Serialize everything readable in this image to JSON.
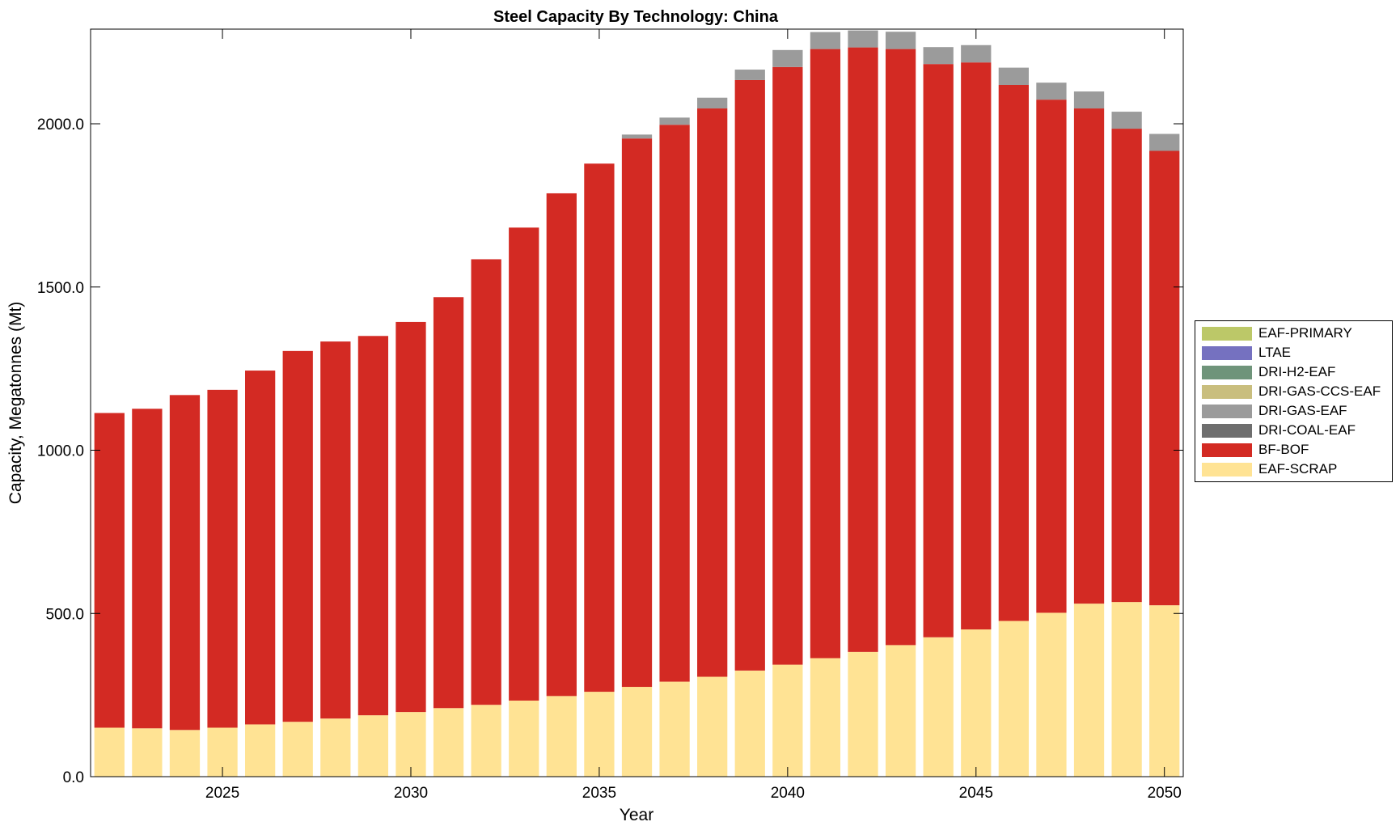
{
  "chart_data": {
    "type": "bar",
    "stacked": true,
    "title": "Steel Capacity By Technology: China",
    "xlabel": "Year",
    "ylabel": "Capacity, Megatonnes (Mt)",
    "ylim": [
      0,
      2290
    ],
    "xlim": [
      2021.5,
      2050.5
    ],
    "yticks": [
      0,
      500,
      1000,
      1500,
      2000
    ],
    "ytick_labels": [
      "0.0",
      "500.0",
      "1000.0",
      "1500.0",
      "2000.0"
    ],
    "xticks": [
      2025,
      2030,
      2035,
      2040,
      2045,
      2050
    ],
    "xtick_labels": [
      "2025",
      "2030",
      "2035",
      "2040",
      "2045",
      "2050"
    ],
    "grid": false,
    "legend_position": "right",
    "categories": [
      2022,
      2023,
      2024,
      2025,
      2026,
      2027,
      2028,
      2029,
      2030,
      2031,
      2032,
      2033,
      2034,
      2035,
      2036,
      2037,
      2038,
      2039,
      2040,
      2041,
      2042,
      2043,
      2044,
      2045,
      2046,
      2047,
      2048,
      2049,
      2050
    ],
    "series": [
      {
        "name": "EAF-SCRAP",
        "color": "#FFE394",
        "values": [
          150,
          148,
          143,
          150,
          160,
          168,
          178,
          188,
          198,
          210,
          220,
          233,
          247,
          260,
          275,
          291,
          306,
          325,
          343,
          363,
          382,
          403,
          427,
          451,
          477,
          502,
          530,
          535,
          525
        ]
      },
      {
        "name": "BF-BOF",
        "color": "#D32A23",
        "values": [
          964,
          979,
          1026,
          1035,
          1084,
          1136,
          1155,
          1162,
          1195,
          1259,
          1365,
          1449,
          1540,
          1618,
          1680,
          1706,
          1741,
          1809,
          1831,
          1866,
          1852,
          1826,
          1756,
          1737,
          1642,
          1572,
          1517,
          1450,
          1392
        ]
      },
      {
        "name": "DRI-COAL-EAF",
        "color": "#6E6E6E",
        "values": [
          0,
          0,
          0,
          0,
          0,
          0,
          0,
          0,
          0,
          0,
          0,
          0,
          0,
          0,
          0,
          0,
          0,
          0,
          0,
          0,
          0,
          0,
          0,
          0,
          0,
          0,
          0,
          0,
          0
        ]
      },
      {
        "name": "DRI-GAS-EAF",
        "color": "#9B9B9B",
        "values": [
          0,
          0,
          0,
          0,
          0,
          0,
          0,
          0,
          0,
          0,
          0,
          0,
          0,
          0,
          12,
          22,
          33,
          32,
          52,
          52,
          52,
          53,
          52,
          53,
          53,
          52,
          52,
          52,
          52
        ]
      },
      {
        "name": "DRI-GAS-CCS-EAF",
        "color": "#C9BE7E",
        "values": [
          0,
          0,
          0,
          0,
          0,
          0,
          0,
          0,
          0,
          0,
          0,
          0,
          0,
          0,
          0,
          0,
          0,
          0,
          0,
          0,
          0,
          0,
          0,
          0,
          0,
          0,
          0,
          0,
          0
        ]
      },
      {
        "name": "DRI-H2-EAF",
        "color": "#6F947A",
        "values": [
          0,
          0,
          0,
          0,
          0,
          0,
          0,
          0,
          0,
          0,
          0,
          0,
          0,
          0,
          0,
          0,
          0,
          0,
          0,
          0,
          0,
          0,
          0,
          0,
          0,
          0,
          0,
          0,
          0
        ]
      },
      {
        "name": "LTAE",
        "color": "#7571C0",
        "values": [
          0,
          0,
          0,
          0,
          0,
          0,
          0,
          0,
          0,
          0,
          0,
          0,
          0,
          0,
          0,
          0,
          0,
          0,
          0,
          0,
          0,
          0,
          0,
          0,
          0,
          0,
          0,
          0,
          0
        ]
      },
      {
        "name": "EAF-PRIMARY",
        "color": "#BCC868",
        "values": [
          0,
          0,
          0,
          0,
          0,
          0,
          0,
          0,
          0,
          0,
          0,
          0,
          0,
          0,
          0,
          0,
          0,
          0,
          0,
          0,
          0,
          0,
          0,
          0,
          0,
          0,
          0,
          0,
          0
        ]
      }
    ],
    "legend_order": [
      "EAF-PRIMARY",
      "LTAE",
      "DRI-H2-EAF",
      "DRI-GAS-CCS-EAF",
      "DRI-GAS-EAF",
      "DRI-COAL-EAF",
      "BF-BOF",
      "EAF-SCRAP"
    ]
  }
}
